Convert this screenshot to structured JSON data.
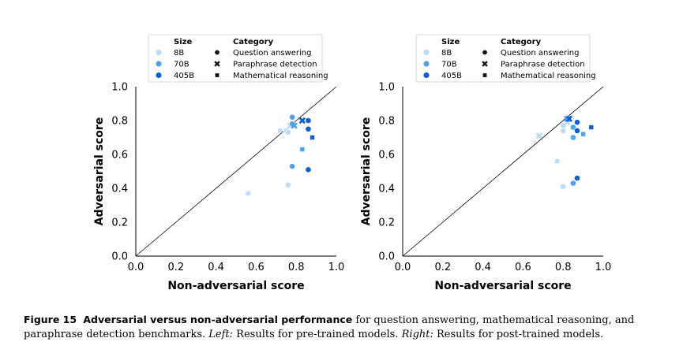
{
  "colors": {
    "8B": "#b9dcf7",
    "70B": "#4ba3ee",
    "405B": "#0d5fd8",
    "diagonal": "#000000"
  },
  "chart_data": [
    {
      "type": "scatter",
      "title": "",
      "xlabel": "Non-adversarial score",
      "ylabel": "Adversarial score",
      "xlim": [
        0,
        1
      ],
      "ylim": [
        0,
        1
      ],
      "xticks": [
        "0.0",
        "0.2",
        "0.4",
        "0.6",
        "0.8",
        "1.0"
      ],
      "yticks": [
        "0.0",
        "0.2",
        "0.4",
        "0.6",
        "0.8",
        "1.0"
      ],
      "grid": false,
      "reference_line": "y = x",
      "legend": {
        "placement": "top",
        "size_title": "Size",
        "category_title": "Category",
        "sizes": [
          "8B",
          "70B",
          "405B"
        ],
        "categories": [
          {
            "label": "Question answering",
            "marker": "circle"
          },
          {
            "label": "Paraphrase detection",
            "marker": "x"
          },
          {
            "label": "Mathematical reasoning",
            "marker": "square"
          }
        ]
      },
      "points": [
        {
          "size": "8B",
          "category": "Question answering",
          "x": 0.75,
          "y": 0.74
        },
        {
          "size": "8B",
          "category": "Question answering",
          "x": 0.76,
          "y": 0.73
        },
        {
          "size": "8B",
          "category": "Question answering",
          "x": 0.76,
          "y": 0.42
        },
        {
          "size": "8B",
          "category": "Paraphrase detection",
          "x": 0.77,
          "y": 0.77
        },
        {
          "size": "8B",
          "category": "Mathematical reasoning",
          "x": 0.56,
          "y": 0.37
        },
        {
          "size": "8B",
          "category": "Mathematical reasoning",
          "x": 0.72,
          "y": 0.74
        },
        {
          "size": "70B",
          "category": "Question answering",
          "x": 0.78,
          "y": 0.82
        },
        {
          "size": "70B",
          "category": "Question answering",
          "x": 0.78,
          "y": 0.78
        },
        {
          "size": "70B",
          "category": "Question answering",
          "x": 0.78,
          "y": 0.53
        },
        {
          "size": "70B",
          "category": "Paraphrase detection",
          "x": 0.79,
          "y": 0.77
        },
        {
          "size": "70B",
          "category": "Mathematical reasoning",
          "x": 0.83,
          "y": 0.63
        },
        {
          "size": "405B",
          "category": "Question answering",
          "x": 0.86,
          "y": 0.8
        },
        {
          "size": "405B",
          "category": "Question answering",
          "x": 0.86,
          "y": 0.75
        },
        {
          "size": "405B",
          "category": "Question answering",
          "x": 0.86,
          "y": 0.51
        },
        {
          "size": "405B",
          "category": "Paraphrase detection",
          "x": 0.83,
          "y": 0.8
        },
        {
          "size": "405B",
          "category": "Mathematical reasoning",
          "x": 0.88,
          "y": 0.7
        }
      ]
    },
    {
      "type": "scatter",
      "title": "",
      "xlabel": "Non-adversarial score",
      "ylabel": "Adversarial score",
      "xlim": [
        0,
        1
      ],
      "ylim": [
        0,
        1
      ],
      "xticks": [
        "0.0",
        "0.2",
        "0.4",
        "0.6",
        "0.8",
        "1.0"
      ],
      "yticks": [
        "0.0",
        "0.2",
        "0.4",
        "0.6",
        "0.8",
        "1.0"
      ],
      "grid": false,
      "reference_line": "y = x",
      "legend": {
        "placement": "top",
        "size_title": "Size",
        "category_title": "Category",
        "sizes": [
          "8B",
          "70B",
          "405B"
        ],
        "categories": [
          {
            "label": "Question answering",
            "marker": "circle"
          },
          {
            "label": "Paraphrase detection",
            "marker": "x"
          },
          {
            "label": "Mathematical reasoning",
            "marker": "square"
          }
        ]
      },
      "points": [
        {
          "size": "8B",
          "category": "Question answering",
          "x": 0.8,
          "y": 0.77
        },
        {
          "size": "8B",
          "category": "Question answering",
          "x": 0.8,
          "y": 0.74
        },
        {
          "size": "8B",
          "category": "Question answering",
          "x": 0.8,
          "y": 0.41
        },
        {
          "size": "8B",
          "category": "Paraphrase detection",
          "x": 0.68,
          "y": 0.71
        },
        {
          "size": "8B",
          "category": "Paraphrase detection",
          "x": 0.82,
          "y": 0.79
        },
        {
          "size": "8B",
          "category": "Mathematical reasoning",
          "x": 0.77,
          "y": 0.56
        },
        {
          "size": "70B",
          "category": "Question answering",
          "x": 0.85,
          "y": 0.76
        },
        {
          "size": "70B",
          "category": "Question answering",
          "x": 0.85,
          "y": 0.7
        },
        {
          "size": "70B",
          "category": "Question answering",
          "x": 0.85,
          "y": 0.43
        },
        {
          "size": "70B",
          "category": "Paraphrase detection",
          "x": 0.82,
          "y": 0.81
        },
        {
          "size": "70B",
          "category": "Mathematical reasoning",
          "x": 0.9,
          "y": 0.72
        },
        {
          "size": "405B",
          "category": "Question answering",
          "x": 0.87,
          "y": 0.79
        },
        {
          "size": "405B",
          "category": "Question answering",
          "x": 0.87,
          "y": 0.74
        },
        {
          "size": "405B",
          "category": "Question answering",
          "x": 0.87,
          "y": 0.46
        },
        {
          "size": "405B",
          "category": "Paraphrase detection",
          "x": 0.83,
          "y": 0.81
        },
        {
          "size": "405B",
          "category": "Mathematical reasoning",
          "x": 0.94,
          "y": 0.76
        }
      ]
    }
  ],
  "caption": {
    "label": "Figure 15",
    "bold_title": "Adversarial versus non-adversarial performance",
    "text": " for question answering, mathematical reasoning, and paraphrase detection benchmarks. ",
    "left_label": "Left:",
    "left_text": " Results for pre-trained models. ",
    "right_label": "Right:",
    "right_text": " Results for post-trained models."
  }
}
